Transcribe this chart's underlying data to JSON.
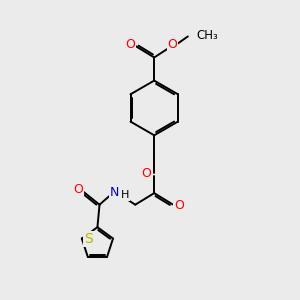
{
  "bg_color": "#ebebeb",
  "bond_color": "#000000",
  "bond_width": 1.4,
  "atom_colors": {
    "O": "#ff0000",
    "N": "#0000cd",
    "S": "#b8b800",
    "C": "#000000",
    "H": "#000000"
  },
  "font_size": 8.5,
  "xlim": [
    0,
    10
  ],
  "ylim": [
    0,
    14
  ]
}
